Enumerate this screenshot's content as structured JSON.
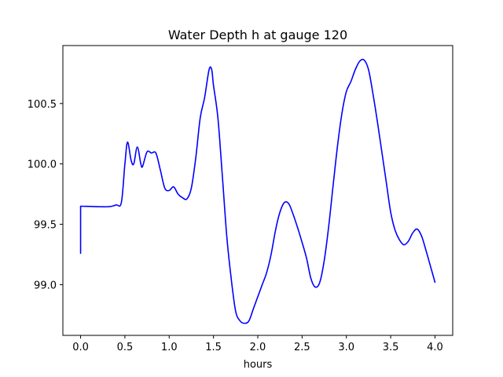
{
  "chart_data": {
    "type": "line",
    "title": "Water Depth h at gauge 120",
    "xlabel": "hours",
    "ylabel": "",
    "xlim": [
      -0.2,
      4.2
    ],
    "ylim": [
      98.58,
      100.98
    ],
    "xticks": [
      0.0,
      0.5,
      1.0,
      1.5,
      2.0,
      2.5,
      3.0,
      3.5,
      4.0
    ],
    "xtick_labels": [
      "0.0",
      "0.5",
      "1.0",
      "1.5",
      "2.0",
      "2.5",
      "3.0",
      "3.5",
      "4.0"
    ],
    "yticks": [
      99.0,
      99.5,
      100.0,
      100.5
    ],
    "ytick_labels": [
      "99.0",
      "99.5",
      "100.0",
      "100.5"
    ],
    "grid": false,
    "series": [
      {
        "color": "#0000ff",
        "points": [
          [
            0.0,
            99.26
          ],
          [
            0.0,
            99.65
          ],
          [
            0.3,
            99.645
          ],
          [
            0.4,
            99.66
          ],
          [
            0.46,
            99.68
          ],
          [
            0.5,
            100.0
          ],
          [
            0.53,
            100.18
          ],
          [
            0.57,
            100.03
          ],
          [
            0.6,
            100.0
          ],
          [
            0.64,
            100.14
          ],
          [
            0.68,
            100.0
          ],
          [
            0.7,
            99.98
          ],
          [
            0.75,
            100.1
          ],
          [
            0.8,
            100.09
          ],
          [
            0.85,
            100.09
          ],
          [
            0.9,
            99.95
          ],
          [
            0.95,
            99.8
          ],
          [
            1.0,
            99.78
          ],
          [
            1.05,
            99.81
          ],
          [
            1.1,
            99.75
          ],
          [
            1.15,
            99.72
          ],
          [
            1.2,
            99.71
          ],
          [
            1.25,
            99.8
          ],
          [
            1.3,
            100.05
          ],
          [
            1.35,
            100.38
          ],
          [
            1.4,
            100.55
          ],
          [
            1.45,
            100.78
          ],
          [
            1.48,
            100.78
          ],
          [
            1.5,
            100.65
          ],
          [
            1.55,
            100.38
          ],
          [
            1.6,
            99.9
          ],
          [
            1.65,
            99.4
          ],
          [
            1.7,
            99.05
          ],
          [
            1.75,
            98.78
          ],
          [
            1.8,
            98.7
          ],
          [
            1.85,
            98.68
          ],
          [
            1.9,
            98.7
          ],
          [
            1.95,
            98.8
          ],
          [
            2.0,
            98.9
          ],
          [
            2.05,
            99.0
          ],
          [
            2.1,
            99.1
          ],
          [
            2.15,
            99.25
          ],
          [
            2.2,
            99.45
          ],
          [
            2.25,
            99.6
          ],
          [
            2.3,
            99.68
          ],
          [
            2.35,
            99.67
          ],
          [
            2.4,
            99.58
          ],
          [
            2.45,
            99.47
          ],
          [
            2.5,
            99.35
          ],
          [
            2.55,
            99.22
          ],
          [
            2.6,
            99.05
          ],
          [
            2.65,
            98.98
          ],
          [
            2.7,
            99.02
          ],
          [
            2.75,
            99.2
          ],
          [
            2.8,
            99.48
          ],
          [
            2.85,
            99.82
          ],
          [
            2.9,
            100.15
          ],
          [
            2.95,
            100.42
          ],
          [
            3.0,
            100.6
          ],
          [
            3.05,
            100.68
          ],
          [
            3.1,
            100.78
          ],
          [
            3.15,
            100.85
          ],
          [
            3.2,
            100.86
          ],
          [
            3.25,
            100.78
          ],
          [
            3.3,
            100.58
          ],
          [
            3.35,
            100.35
          ],
          [
            3.4,
            100.1
          ],
          [
            3.45,
            99.85
          ],
          [
            3.5,
            99.6
          ],
          [
            3.55,
            99.45
          ],
          [
            3.6,
            99.37
          ],
          [
            3.65,
            99.33
          ],
          [
            3.7,
            99.36
          ],
          [
            3.75,
            99.43
          ],
          [
            3.8,
            99.46
          ],
          [
            3.85,
            99.4
          ],
          [
            3.9,
            99.28
          ],
          [
            3.95,
            99.15
          ],
          [
            4.0,
            99.02
          ]
        ]
      }
    ]
  }
}
